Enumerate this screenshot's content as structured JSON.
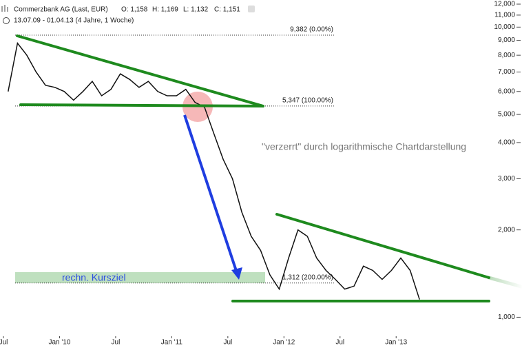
{
  "chart_data": {
    "type": "line",
    "title": "Commerzbank AG (Last, EUR)",
    "ohlc_labels": [
      "O: 1,158",
      "H: 1,169",
      "L: 1,132",
      "C: 1,151"
    ],
    "subtitle": "13.07.09 - 01.04.13 (4 Jahre, 1 Woche)",
    "log_scale": true,
    "x": [
      "2009-07",
      "2009-08",
      "2009-09",
      "2009-10",
      "2009-11",
      "2009-12",
      "2010-01",
      "2010-02",
      "2010-03",
      "2010-04",
      "2010-05",
      "2010-06",
      "2010-07",
      "2010-08",
      "2010-09",
      "2010-10",
      "2010-11",
      "2010-12",
      "2011-01",
      "2011-02",
      "2011-03",
      "2011-04",
      "2011-05",
      "2011-06",
      "2011-07",
      "2011-08",
      "2011-09",
      "2011-10",
      "2011-11",
      "2011-12",
      "2012-01",
      "2012-02",
      "2012-03",
      "2012-04",
      "2012-05",
      "2012-06",
      "2012-07",
      "2012-08",
      "2012-09",
      "2012-10",
      "2012-11",
      "2012-12",
      "2013-01",
      "2013-02",
      "2013-03"
    ],
    "series": [
      {
        "name": "Commerzbank AG",
        "color": "#111111",
        "values": [
          6.0,
          8.8,
          8.0,
          7.0,
          6.3,
          6.2,
          6.0,
          5.6,
          6.0,
          6.5,
          5.8,
          6.1,
          6.9,
          6.6,
          6.2,
          6.5,
          6.0,
          5.8,
          5.8,
          6.1,
          5.5,
          5.3,
          4.3,
          3.5,
          3.0,
          2.3,
          1.9,
          1.7,
          1.4,
          1.25,
          1.6,
          2.0,
          1.9,
          1.6,
          1.45,
          1.35,
          1.25,
          1.28,
          1.5,
          1.45,
          1.35,
          1.45,
          1.6,
          1.45,
          1.151
        ]
      }
    ],
    "xlim": [
      "2009-07",
      "2013-11"
    ],
    "xticks": [
      {
        "value": "2009-07",
        "label": "Jul"
      },
      {
        "value": "2010-01",
        "label": "Jan '10"
      },
      {
        "value": "2010-07",
        "label": "Jul"
      },
      {
        "value": "2011-01",
        "label": "Jan '11"
      },
      {
        "value": "2011-07",
        "label": "Jul"
      },
      {
        "value": "2012-01",
        "label": "Jan '12"
      },
      {
        "value": "2012-07",
        "label": "Jul"
      },
      {
        "value": "2013-01",
        "label": "Jan '13"
      }
    ],
    "ylim": [
      0.86,
      12.4
    ],
    "yticks": [
      {
        "value": 1,
        "label": "1,000"
      },
      {
        "value": 2,
        "label": "2,000"
      },
      {
        "value": 3,
        "label": "3,000"
      },
      {
        "value": 4,
        "label": "4,000"
      },
      {
        "value": 5,
        "label": "5,000"
      },
      {
        "value": 6,
        "label": "6,000"
      },
      {
        "value": 7,
        "label": "7,000"
      },
      {
        "value": 8,
        "label": "8,000"
      },
      {
        "value": 9,
        "label": "9,000"
      },
      {
        "value": 10,
        "label": "10,000"
      },
      {
        "value": 11,
        "label": "11,000"
      },
      {
        "value": 12,
        "label": "12,000"
      }
    ],
    "levels": [
      {
        "value": 9.382,
        "label": "9,382 (0.00%)"
      },
      {
        "value": 5.347,
        "label": "5,347 (100.00%)"
      },
      {
        "value": 1.312,
        "label": "1,312 (200.00%)"
      }
    ],
    "annotations": [
      "\"verzerrt\" durch logarithmische Chartdarstellung",
      "rechn. Kursziel"
    ]
  }
}
